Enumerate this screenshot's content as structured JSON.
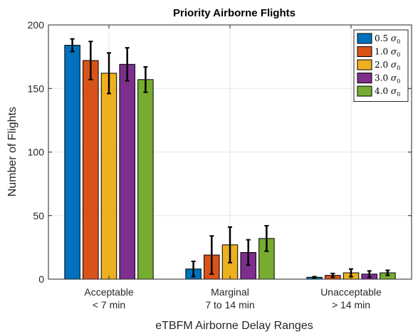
{
  "chart_data": {
    "type": "bar",
    "title": "Priority Airborne Flights",
    "xlabel": "eTBFM Airborne Delay Ranges",
    "ylabel": "Number of Flights",
    "ylim": [
      0,
      200
    ],
    "yticks": [
      0,
      50,
      100,
      150,
      200
    ],
    "grid": true,
    "legend_position": "top-right",
    "categories": [
      [
        "Acceptable",
        "< 7 min"
      ],
      [
        "Marginal",
        "7 to 14 min"
      ],
      [
        "Unacceptable",
        "> 14 min"
      ]
    ],
    "series": [
      {
        "name": "0.5 σ₀",
        "name_parts": [
          "0.5 ",
          "σ",
          "0"
        ],
        "color": "#0072BD",
        "values": [
          184,
          8,
          1.5
        ],
        "err": [
          5,
          6,
          0.5
        ]
      },
      {
        "name": "1.0 σ₀",
        "name_parts": [
          "1.0 ",
          "σ",
          "0"
        ],
        "color": "#D95319",
        "values": [
          172,
          19,
          3
        ],
        "err": [
          15,
          15,
          1.5
        ]
      },
      {
        "name": "2.0 σ₀",
        "name_parts": [
          "2.0 ",
          "σ",
          "0"
        ],
        "color": "#EDB120",
        "values": [
          162,
          27,
          5
        ],
        "err": [
          16,
          14,
          3
        ]
      },
      {
        "name": "3.0 σ₀",
        "name_parts": [
          "3.0 ",
          "σ",
          "0"
        ],
        "color": "#7E2F8E",
        "values": [
          169,
          21,
          4
        ],
        "err": [
          13,
          10,
          2.5
        ]
      },
      {
        "name": "4.0 σ₀",
        "name_parts": [
          "4.0 ",
          "σ",
          "0"
        ],
        "color": "#77AC30",
        "values": [
          157,
          32,
          5
        ],
        "err": [
          10,
          10,
          2
        ]
      }
    ]
  }
}
